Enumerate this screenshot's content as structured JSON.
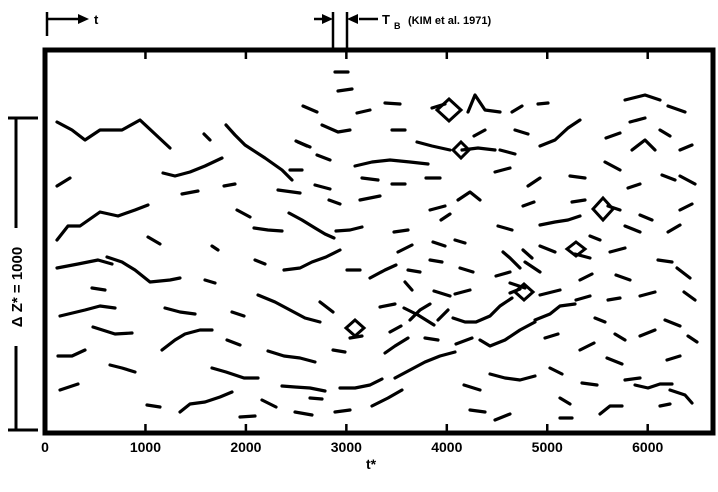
{
  "chart_data": {
    "type": "diagram",
    "x_axis": {
      "label": "t*",
      "tick_labels": [
        "0",
        "1000",
        "2000",
        "3000",
        "4000",
        "5000",
        "6000"
      ],
      "tick_values": [
        0,
        1000,
        2000,
        3000,
        4000,
        5000,
        6000
      ],
      "range": [
        0,
        6650
      ]
    },
    "y_axis": {
      "label": "Δ Z* = 1000",
      "scale_bar_units": 1000
    },
    "annotations": [
      {
        "text": "t",
        "marker_x": 0,
        "arrow": "right"
      },
      {
        "text": "T",
        "subscript": "B",
        "suffix": "(KIM et al. 1971)",
        "marker_x": 3000,
        "arrow": "right"
      }
    ],
    "grid": false
  }
}
